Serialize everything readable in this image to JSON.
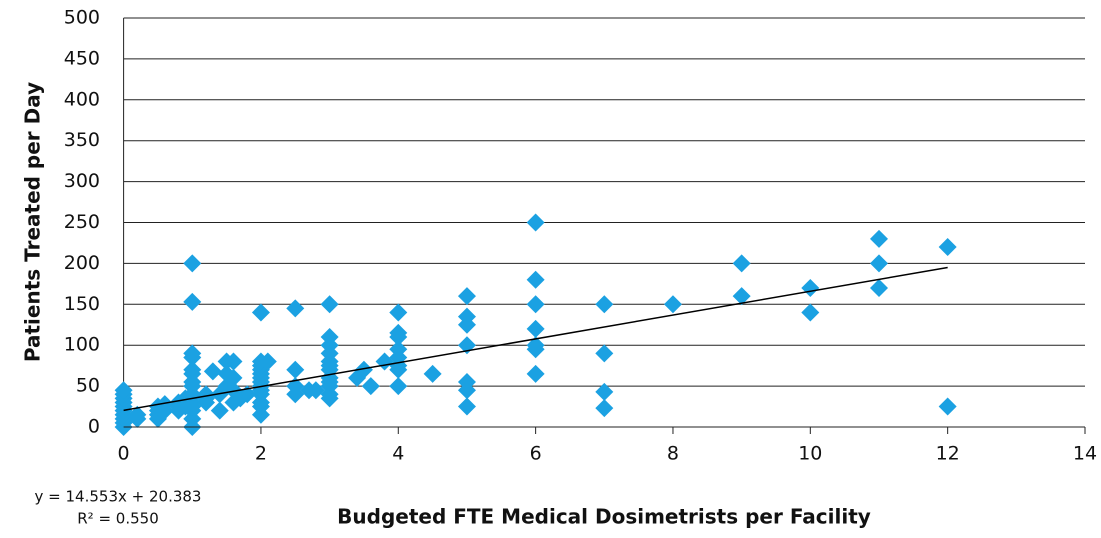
{
  "chart_data": {
    "type": "scatter",
    "x_label": "Budgeted FTE Medical Dosimetrists per Facility",
    "y_label": "Patients Treated per Day",
    "xlim": [
      0,
      14
    ],
    "xticks": [
      0,
      2,
      4,
      6,
      8,
      10,
      12,
      14
    ],
    "ylim": [
      0,
      500
    ],
    "yticks": [
      0,
      50,
      100,
      150,
      200,
      250,
      300,
      350,
      400,
      450,
      500
    ],
    "grid": true,
    "series": [
      {
        "color": "#1ba1e2",
        "x": [
          0,
          0,
          0,
          0,
          0,
          0,
          0,
          0,
          0,
          0,
          0.2,
          0.2,
          0.5,
          0.5,
          0.5,
          0.5,
          0.6,
          0.6,
          0.8,
          0.8,
          0.8,
          0.9,
          0.9,
          1,
          1,
          1,
          1,
          1,
          1,
          1,
          1,
          1,
          1,
          1,
          1,
          1,
          1,
          1.2,
          1.2,
          1.2,
          1.3,
          1.4,
          1.4,
          1.5,
          1.5,
          1.5,
          1.6,
          1.6,
          1.6,
          1.6,
          1.7,
          1.8,
          2,
          2,
          2,
          2,
          2,
          2,
          2,
          2,
          2,
          2,
          2,
          2,
          2,
          2.1,
          2.5,
          2.5,
          2.5,
          2.5,
          2.7,
          2.8,
          3,
          3,
          3,
          3,
          3,
          3,
          3,
          3,
          3,
          3,
          3,
          3,
          3.4,
          3.5,
          3.6,
          3.8,
          4,
          4,
          4,
          4,
          4,
          4,
          4,
          4,
          4.5,
          5,
          5,
          5,
          5,
          5,
          5,
          5,
          6,
          6,
          6,
          6,
          6,
          6,
          6,
          7,
          7,
          7,
          7,
          8,
          9,
          9,
          10,
          10,
          11,
          11,
          11,
          12,
          12
        ],
        "values": [
          0,
          5,
          10,
          15,
          20,
          25,
          30,
          35,
          40,
          45,
          10,
          15,
          10,
          15,
          20,
          25,
          28,
          20,
          20,
          25,
          30,
          25,
          35,
          0,
          10,
          20,
          25,
          30,
          40,
          50,
          55,
          65,
          70,
          85,
          90,
          153,
          200,
          30,
          35,
          40,
          68,
          20,
          40,
          50,
          65,
          80,
          30,
          45,
          60,
          80,
          35,
          40,
          15,
          25,
          30,
          40,
          45,
          50,
          55,
          60,
          65,
          70,
          75,
          80,
          140,
          80,
          40,
          50,
          70,
          145,
          45,
          45,
          35,
          40,
          50,
          55,
          60,
          70,
          75,
          80,
          90,
          100,
          110,
          150,
          60,
          70,
          50,
          80,
          50,
          70,
          75,
          85,
          95,
          110,
          115,
          140,
          65,
          25,
          45,
          55,
          100,
          125,
          135,
          160,
          65,
          95,
          100,
          120,
          150,
          180,
          250,
          23,
          43,
          90,
          150,
          150,
          160,
          200,
          140,
          170,
          170,
          200,
          230,
          25,
          220
        ]
      }
    ],
    "trendline": {
      "slope": 14.553,
      "intercept": 20.383,
      "x_start": 0,
      "x_end": 12,
      "color": "#000000",
      "equation": "y = 14.553x + 20.383",
      "r_squared": "R² = 0.550"
    }
  }
}
